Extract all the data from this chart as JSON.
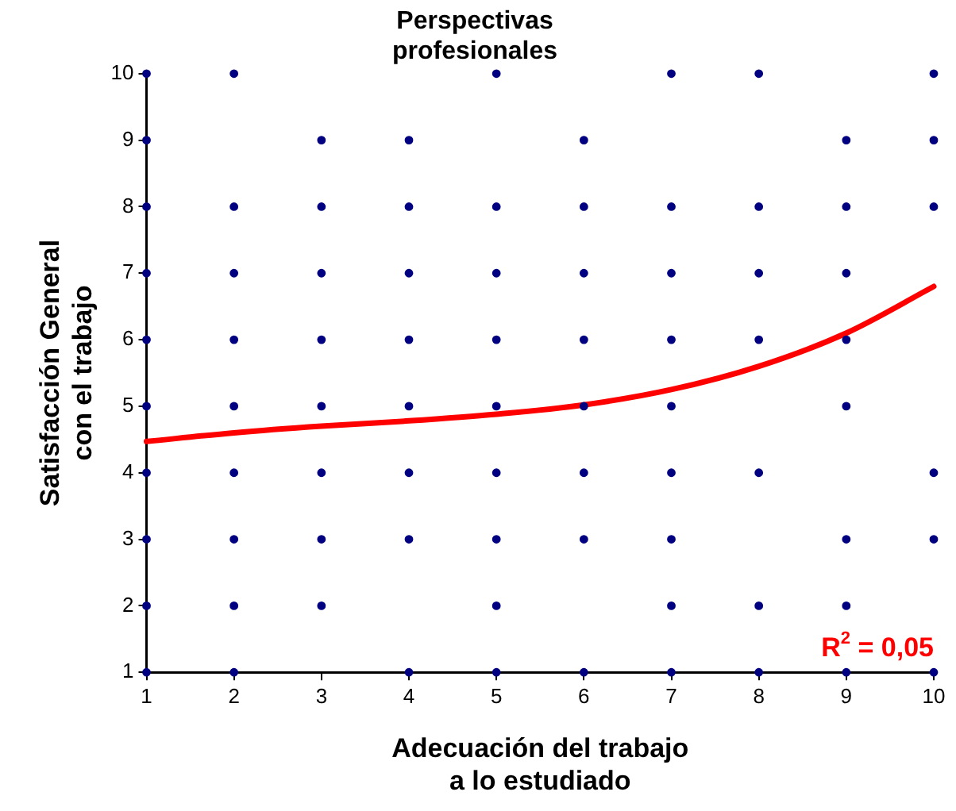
{
  "chart_data": {
    "type": "scatter",
    "title": "Perspectivas profesionales",
    "xlabel": "Adecuación del trabajo a lo estudiado",
    "ylabel": "Satisfacción General con el trabajo",
    "xlim": [
      1,
      10
    ],
    "ylim": [
      1,
      10
    ],
    "xticks": [
      1,
      2,
      3,
      4,
      5,
      6,
      7,
      8,
      9,
      10
    ],
    "yticks": [
      1,
      2,
      3,
      4,
      5,
      6,
      7,
      8,
      9,
      10
    ],
    "grid": false,
    "legend": false,
    "marker": "circle",
    "annotations": [
      "R$^{2}$ = 0,05"
    ],
    "series": [
      {
        "color": "#000080",
        "x": [
          1,
          2,
          5,
          7,
          8,
          10,
          1,
          3,
          4,
          6,
          9,
          10,
          1,
          2,
          3,
          4,
          5,
          6,
          7,
          8,
          9,
          10,
          1,
          2,
          3,
          4,
          5,
          6,
          7,
          8,
          9,
          1,
          2,
          3,
          4,
          5,
          6,
          7,
          8,
          9,
          1,
          2,
          3,
          4,
          5,
          6,
          7,
          9,
          1,
          2,
          3,
          4,
          5,
          6,
          7,
          8,
          10,
          1,
          2,
          3,
          4,
          5,
          6,
          7,
          9,
          10,
          1,
          2,
          3,
          5,
          7,
          8,
          9,
          1,
          2,
          4,
          5,
          6,
          7,
          8,
          9,
          10
        ],
        "values": [
          10,
          10,
          10,
          10,
          10,
          10,
          9,
          9,
          9,
          9,
          9,
          9,
          8,
          8,
          8,
          8,
          8,
          8,
          8,
          8,
          8,
          8,
          7,
          7,
          7,
          7,
          7,
          7,
          7,
          7,
          7,
          6,
          6,
          6,
          6,
          6,
          6,
          6,
          6,
          6,
          5,
          5,
          5,
          5,
          5,
          5,
          5,
          5,
          4,
          4,
          4,
          4,
          4,
          4,
          4,
          4,
          4,
          3,
          3,
          3,
          3,
          3,
          3,
          3,
          3,
          3,
          2,
          2,
          2,
          2,
          2,
          2,
          2,
          1,
          1,
          1,
          1,
          1,
          1,
          1,
          1,
          1
        ]
      },
      {
        "type": "line",
        "color": "#ff0000",
        "marker": "none",
        "x": [
          1,
          2,
          3,
          4,
          5,
          6,
          7,
          8,
          9,
          10
        ],
        "values": [
          4.47,
          4.6,
          4.7,
          4.78,
          4.88,
          5.02,
          5.25,
          5.6,
          6.1,
          6.8
        ]
      }
    ]
  }
}
